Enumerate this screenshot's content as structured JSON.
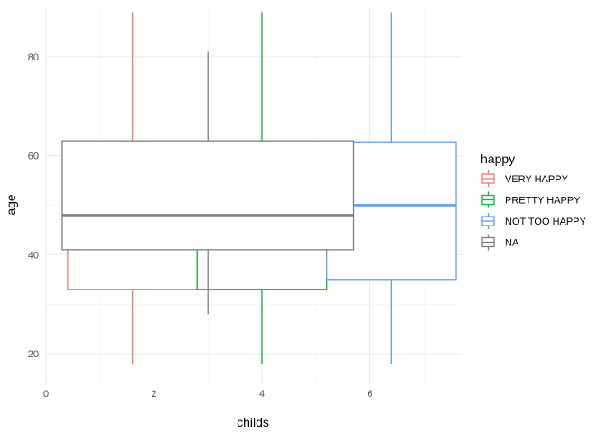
{
  "chart_data": {
    "type": "boxplot",
    "xlabel": "childs",
    "ylabel": "age",
    "xlim": [
      0,
      7.7
    ],
    "ylim": [
      14,
      90
    ],
    "x_ticks": [
      0,
      2,
      4,
      6
    ],
    "y_ticks": [
      20,
      40,
      60,
      80
    ],
    "grid": true,
    "legend": {
      "title": "happy",
      "position": "right"
    },
    "series": [
      {
        "name": "VERY HAPPY",
        "color": "#F8766D",
        "x_left": 0.4,
        "x_right": 2.8,
        "x_center": 1.6,
        "whisker_low": 18,
        "q1": 33,
        "median": 48,
        "q3": 63,
        "whisker_high": 89
      },
      {
        "name": "PRETTY HAPPY",
        "color": "#00BA38",
        "x_left": 2.8,
        "x_right": 5.2,
        "x_center": 4.0,
        "whisker_low": 18,
        "q1": 33,
        "median": 48,
        "q3": 63,
        "whisker_high": 89
      },
      {
        "name": "NOT TOO HAPPY",
        "color": "#619CFF",
        "x_left": 5.2,
        "x_right": 7.6,
        "x_center": 6.4,
        "whisker_low": 18,
        "q1": 35,
        "median": 50,
        "q3": 62.8,
        "whisker_high": 89
      },
      {
        "name": "NA",
        "color": "#7F7F7F",
        "x_left": 0.3,
        "x_right": 5.7,
        "x_center": 3.0,
        "whisker_low": 28,
        "q1": 41,
        "median": 48,
        "q3": 63,
        "whisker_high": 81
      }
    ]
  }
}
